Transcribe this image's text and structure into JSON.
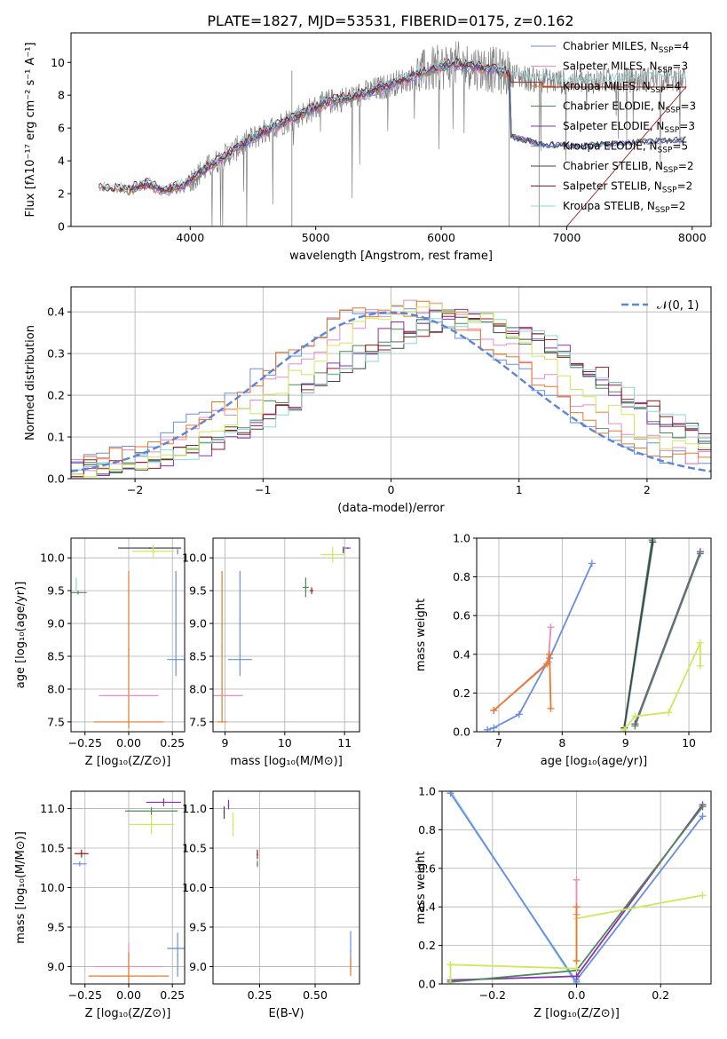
{
  "figure_title": "PLATE=1827, MJD=53531, FIBERID=0175, z=0.162",
  "colors": {
    "chabrier_miles": "#6a8ee0",
    "salpeter_miles": "#e88bbf",
    "kroupa_miles": "#e8782a",
    "chabrier_elodie": "#4d8a55",
    "salpeter_elodie": "#8a30b8",
    "kroupa_elodie": "#5a8ad8",
    "chabrier_stelib": "#444444",
    "salpeter_stelib": "#9a1a1a",
    "kroupa_stelib": "#8fd6d6",
    "data": "#808080",
    "yellowgreen": "#cfe85a",
    "normal_curve": "#5b86d6",
    "grid": "#b0b0b0"
  },
  "chart_data": [
    {
      "id": "spectrum",
      "type": "line",
      "title": "PLATE=1827, MJD=53531, FIBERID=0175, z=0.162",
      "xlabel": "wavelength [Angstrom, rest frame]",
      "ylabel": "Flux [fλ10⁻¹⁷ erg cm⁻² s⁻¹ A⁻¹]",
      "xlim": [
        3050,
        8150
      ],
      "ylim": [
        0,
        11.8
      ],
      "xticks": [
        4000,
        5000,
        6000,
        7000,
        8000
      ],
      "yticks": [
        0,
        2,
        4,
        6,
        8,
        10
      ],
      "grid": false,
      "legend_position": "top-right",
      "legend": [
        {
          "key": "chabrier_miles",
          "label": "Chabrier MILES, N",
          "sub": "SSP",
          "tail": "=4"
        },
        {
          "key": "salpeter_miles",
          "label": "Salpeter MILES, N",
          "sub": "SSP",
          "tail": "=3"
        },
        {
          "key": "kroupa_miles",
          "label": "Kroupa MILES, N",
          "sub": "SSP",
          "tail": "=4"
        },
        {
          "key": "chabrier_elodie",
          "label": "Chabrier ELODIE, N",
          "sub": "SSP",
          "tail": "=3"
        },
        {
          "key": "salpeter_elodie",
          "label": "Salpeter ELODIE, N",
          "sub": "SSP",
          "tail": "=3"
        },
        {
          "key": "kroupa_elodie",
          "label": "Kroupa ELODIE, N",
          "sub": "SSP",
          "tail": "=5"
        },
        {
          "key": "chabrier_stelib",
          "label": "Chabrier STELIB, N",
          "sub": "SSP",
          "tail": "=2"
        },
        {
          "key": "salpeter_stelib",
          "label": "Salpeter STELIB, N",
          "sub": "SSP",
          "tail": "=2"
        },
        {
          "key": "kroupa_stelib",
          "label": "Kroupa STELIB, N",
          "sub": "SSP",
          "tail": "=2"
        }
      ],
      "continuum": [
        [
          3270,
          2.3
        ],
        [
          3500,
          2.2
        ],
        [
          3650,
          2.6
        ],
        [
          3800,
          2.2
        ],
        [
          3950,
          2.5
        ],
        [
          4100,
          3.4
        ],
        [
          4300,
          4.4
        ],
        [
          4500,
          5.4
        ],
        [
          4700,
          6.2
        ],
        [
          4900,
          6.9
        ],
        [
          5100,
          7.6
        ],
        [
          5300,
          7.9
        ],
        [
          5500,
          8.4
        ],
        [
          5700,
          8.9
        ],
        [
          5900,
          9.5
        ],
        [
          6100,
          9.9
        ],
        [
          6300,
          9.7
        ],
        [
          6500,
          9.4
        ],
        [
          6700,
          9.0
        ],
        [
          7000,
          8.8
        ],
        [
          7400,
          8.9
        ],
        [
          7800,
          9.0
        ],
        [
          7950,
          9.0
        ]
      ],
      "model_red_tail": [
        [
          6550,
          5.5
        ],
        [
          6800,
          5.0
        ],
        [
          7100,
          4.9
        ],
        [
          7500,
          5.1
        ],
        [
          7900,
          5.3
        ]
      ]
    },
    {
      "id": "residual-hist",
      "type": "line",
      "xlabel": "(data-model)/error",
      "ylabel": "Normed distribution",
      "xlim": [
        -2.5,
        2.5
      ],
      "ylim": [
        0,
        0.46
      ],
      "xticks": [
        -2,
        -1,
        0,
        1,
        2
      ],
      "yticks": [
        0.0,
        0.1,
        0.2,
        0.3,
        0.4
      ],
      "grid": true,
      "legend_position": "top-right",
      "legend": [
        {
          "key": "normal_curve",
          "label": "𝒩(0, 1)"
        }
      ],
      "bin_width": 0.1,
      "series": [
        {
          "key": "chabrier_miles",
          "shift": 0.0,
          "scale": 1.0
        },
        {
          "key": "salpeter_miles",
          "shift": 0.15,
          "scale": 1.02
        },
        {
          "key": "kroupa_miles",
          "shift": 0.05,
          "scale": 1.0
        },
        {
          "key": "chabrier_elodie",
          "shift": 0.5,
          "scale": 1.08
        },
        {
          "key": "salpeter_elodie",
          "shift": 0.55,
          "scale": 1.05
        },
        {
          "key": "chabrier_stelib",
          "shift": 0.6,
          "scale": 1.1
        },
        {
          "key": "salpeter_stelib",
          "shift": 0.6,
          "scale": 1.1
        },
        {
          "key": "kroupa_stelib",
          "shift": 0.62,
          "scale": 1.1
        },
        {
          "key": "yellowgreen",
          "shift": 0.3,
          "scale": 1.0
        }
      ]
    },
    {
      "id": "age-vs-Z",
      "type": "scatter",
      "xlabel": "Z [log₁₀(Z/Z⊙)]",
      "ylabel": "age  [log₁₀(age/yr)]",
      "xlim": [
        -0.33,
        0.32
      ],
      "ylim": [
        7.35,
        10.3
      ],
      "xticks": [
        -0.25,
        0.0,
        0.25
      ],
      "xticklabels": [
        "−0.25",
        "0.00",
        "0.25"
      ],
      "yticks": [
        7.5,
        8.0,
        8.5,
        9.0,
        9.5,
        10.0
      ],
      "grid": true,
      "points": [
        {
          "key": "kroupa_stelib",
          "x": -0.3,
          "y": 9.6,
          "ex": 0.0,
          "ey": 0.1
        },
        {
          "key": "chabrier_elodie",
          "x": -0.29,
          "y": 9.47,
          "ex": 0.05,
          "ey": 0.03
        },
        {
          "key": "salpeter_elodie",
          "x": 0.12,
          "y": 10.15,
          "ex": 0.18,
          "ey": 0.0
        },
        {
          "key": "chabrier_stelib",
          "x": 0.12,
          "y": 10.15,
          "ex": 0.18,
          "ey": 0.0
        },
        {
          "key": "yellowgreen",
          "x": 0.14,
          "y": 10.1,
          "ex": 0.12,
          "ey": 0.1
        },
        {
          "key": "chabrier_miles",
          "x": 0.28,
          "y": 10.1,
          "ex": 0.0,
          "ey": 0.05
        },
        {
          "key": "chabrier_miles",
          "x": 0.27,
          "y": 8.45,
          "ex": 0.05,
          "ey": 0.0
        },
        {
          "key": "chabrier_miles",
          "x": 0.27,
          "y": 9.0,
          "ex": 0.0,
          "ey": 0.8
        },
        {
          "key": "kroupa_miles",
          "x": 0.0,
          "y": 8.6,
          "ex": 0.0,
          "ey": 1.2
        },
        {
          "key": "salpeter_miles",
          "x": 0.0,
          "y": 7.9,
          "ex": 0.17,
          "ey": 0.0
        },
        {
          "key": "kroupa_miles",
          "x": 0.0,
          "y": 7.5,
          "ex": 0.2,
          "ey": 0.0
        }
      ]
    },
    {
      "id": "age-vs-mass",
      "type": "scatter",
      "xlabel": "mass [log₁₀(M/M⊙)]",
      "xlim": [
        8.8,
        11.25
      ],
      "ylim": [
        7.35,
        10.3
      ],
      "xticks": [
        9,
        10,
        11
      ],
      "yticks": [
        7.5,
        8.0,
        8.5,
        9.0,
        9.5,
        10.0
      ],
      "grid": true,
      "points": [
        {
          "key": "kroupa_miles",
          "x": 8.95,
          "y": 8.65,
          "ex": 0.0,
          "ey": 1.15
        },
        {
          "key": "salpeter_miles",
          "x": 9.05,
          "y": 7.9,
          "ex": 0.25,
          "ey": 0.0
        },
        {
          "key": "kroupa_miles",
          "x": 8.95,
          "y": 7.5,
          "ex": 0.08,
          "ey": 0.0
        },
        {
          "key": "chabrier_miles",
          "x": 9.25,
          "y": 8.45,
          "ex": 0.2,
          "ey": 0.0
        },
        {
          "key": "chabrier_miles",
          "x": 9.25,
          "y": 9.0,
          "ex": 0.0,
          "ey": 0.8
        },
        {
          "key": "chabrier_elodie",
          "x": 10.35,
          "y": 9.55,
          "ex": 0.05,
          "ey": 0.15
        },
        {
          "key": "salpeter_stelib",
          "x": 10.45,
          "y": 9.5,
          "ex": 0.03,
          "ey": 0.05
        },
        {
          "key": "yellowgreen",
          "x": 10.8,
          "y": 10.05,
          "ex": 0.2,
          "ey": 0.12
        },
        {
          "key": "salpeter_elodie",
          "x": 11.05,
          "y": 10.15,
          "ex": 0.05,
          "ey": 0.0
        },
        {
          "key": "chabrier_stelib",
          "x": 10.98,
          "y": 10.12,
          "ex": 0.0,
          "ey": 0.05
        }
      ]
    },
    {
      "id": "weight-vs-age",
      "type": "line",
      "xlabel": "age  [log₁₀(age/yr)]",
      "ylabel": "mass weight",
      "xlim": [
        6.65,
        10.35
      ],
      "ylim": [
        0,
        1
      ],
      "xticks": [
        7,
        8,
        9,
        10
      ],
      "yticks": [
        0.0,
        0.2,
        0.4,
        0.6,
        0.8,
        1.0
      ],
      "grid": true,
      "series": [
        {
          "key": "chabrier_miles",
          "points": [
            [
              6.82,
              0.01
            ],
            [
              6.92,
              0.02
            ],
            [
              7.32,
              0.09
            ],
            [
              7.8,
              0.38
            ],
            [
              8.47,
              0.87
            ]
          ]
        },
        {
          "key": "salpeter_miles",
          "points": [
            [
              6.92,
              0.11
            ],
            [
              7.78,
              0.36
            ],
            [
              7.82,
              0.54
            ]
          ]
        },
        {
          "key": "kroupa_miles",
          "points": [
            [
              6.92,
              0.11
            ],
            [
              7.76,
              0.35
            ],
            [
              7.8,
              0.4
            ],
            [
              7.82,
              0.12
            ]
          ]
        },
        {
          "key": "chabrier_elodie",
          "points": [
            [
              8.98,
              0.02
            ],
            [
              9.42,
              0.99
            ]
          ]
        },
        {
          "key": "kroupa_stelib",
          "points": [
            [
              8.98,
              0.0
            ],
            [
              9.45,
              1.0
            ]
          ]
        },
        {
          "key": "chabrier_stelib",
          "points": [
            [
              8.98,
              0.02
            ],
            [
              9.43,
              0.98
            ]
          ]
        },
        {
          "key": "salpeter_elodie",
          "points": [
            [
              9.15,
              0.04
            ],
            [
              10.18,
              0.93
            ]
          ]
        },
        {
          "key": "chabrier_elodie",
          "points": [
            [
              9.15,
              0.03
            ],
            [
              10.18,
              0.92
            ]
          ]
        },
        {
          "key": "yellowgreen",
          "points": [
            [
              8.98,
              0.01
            ],
            [
              9.15,
              0.08
            ],
            [
              9.68,
              0.1
            ],
            [
              10.18,
              0.46
            ],
            [
              10.18,
              0.34
            ]
          ]
        }
      ]
    },
    {
      "id": "mass-vs-Z",
      "type": "scatter",
      "xlabel": "Z [log₁₀(Z/Z⊙)]",
      "ylabel": "mass [log₁₀(M/M⊙)]",
      "xlim": [
        -0.33,
        0.32
      ],
      "ylim": [
        8.78,
        11.22
      ],
      "xticks": [
        -0.25,
        0.0,
        0.25
      ],
      "xticklabels": [
        "−0.25",
        "0.00",
        "0.25"
      ],
      "yticks": [
        9.0,
        9.5,
        10.0,
        10.5,
        11.0
      ],
      "grid": true,
      "points": [
        {
          "key": "salpeter_stelib",
          "x": -0.27,
          "y": 10.43,
          "ex": 0.04,
          "ey": 0.05
        },
        {
          "key": "chabrier_miles",
          "x": -0.28,
          "y": 10.3,
          "ex": 0.04,
          "ey": 0.03
        },
        {
          "key": "salpeter_elodie",
          "x": 0.2,
          "y": 11.08,
          "ex": 0.1,
          "ey": 0.05
        },
        {
          "key": "chabrier_elodie",
          "x": 0.13,
          "y": 10.97,
          "ex": 0.15,
          "ey": 0.05
        },
        {
          "key": "yellowgreen",
          "x": 0.13,
          "y": 10.8,
          "ex": 0.13,
          "ey": 0.12
        },
        {
          "key": "chabrier_miles",
          "x": 0.27,
          "y": 9.23,
          "ex": 0.05,
          "ey": 0.0
        },
        {
          "key": "chabrier_miles",
          "x": 0.28,
          "y": 9.15,
          "ex": 0.0,
          "ey": 0.28
        },
        {
          "key": "salpeter_miles",
          "x": 0.0,
          "y": 9.0,
          "ex": 0.2,
          "ey": 0.3
        },
        {
          "key": "kroupa_miles",
          "x": 0.0,
          "y": 8.88,
          "ex": 0.23,
          "ey": 0.3
        }
      ]
    },
    {
      "id": "mass-vs-EBV",
      "type": "scatter",
      "xlabel": "E(B-V)",
      "xlim": [
        0.04,
        0.7
      ],
      "ylim": [
        8.78,
        11.22
      ],
      "xticks": [
        0.25,
        0.5
      ],
      "xticklabels": [
        "0.25",
        "0.50"
      ],
      "yticks": [
        9.0,
        9.5,
        10.0,
        10.5,
        11.0
      ],
      "grid": true,
      "points": [
        {
          "key": "chabrier_stelib",
          "x": 0.09,
          "y": 10.95,
          "ex": 0.0,
          "ey": 0.08
        },
        {
          "key": "salpeter_elodie",
          "x": 0.11,
          "y": 11.05,
          "ex": 0.0,
          "ey": 0.06
        },
        {
          "key": "yellowgreen",
          "x": 0.13,
          "y": 10.8,
          "ex": 0.0,
          "ey": 0.15
        },
        {
          "key": "salpeter_stelib",
          "x": 0.24,
          "y": 10.42,
          "ex": 0.0,
          "ey": 0.06
        },
        {
          "key": "chabrier_elodie",
          "x": 0.24,
          "y": 10.3,
          "ex": 0.0,
          "ey": 0.04
        },
        {
          "key": "chabrier_miles",
          "x": 0.66,
          "y": 9.2,
          "ex": 0.0,
          "ey": 0.25
        },
        {
          "key": "kroupa_miles",
          "x": 0.66,
          "y": 9.0,
          "ex": 0.0,
          "ey": 0.12
        }
      ]
    },
    {
      "id": "weight-vs-Z",
      "type": "line",
      "xlabel": "Z [log₁₀(Z/Z⊙)]",
      "ylabel": "mass weight",
      "xlim": [
        -0.32,
        0.32
      ],
      "ylim": [
        0,
        1
      ],
      "xticks": [
        -0.2,
        0.0,
        0.2
      ],
      "xticklabels": [
        "−0.2",
        "0.0",
        "0.2"
      ],
      "yticks": [
        0.0,
        0.2,
        0.4,
        0.6,
        0.8,
        1.0
      ],
      "grid": true,
      "series": [
        {
          "key": "kroupa_stelib",
          "points": [
            [
              -0.3,
              1.0
            ],
            [
              0.0,
              0.0
            ]
          ]
        },
        {
          "key": "chabrier_miles",
          "points": [
            [
              -0.3,
              0.99
            ],
            [
              0.0,
              0.01
            ]
          ]
        },
        {
          "key": "chabrier_miles",
          "points": [
            [
              0.0,
              0.02
            ],
            [
              0.3,
              0.87
            ]
          ]
        },
        {
          "key": "salpeter_elodie",
          "points": [
            [
              -0.3,
              0.02
            ],
            [
              0.0,
              0.04
            ],
            [
              0.3,
              0.93
            ]
          ]
        },
        {
          "key": "chabrier_elodie",
          "points": [
            [
              -0.3,
              0.01
            ],
            [
              0.0,
              0.07
            ],
            [
              0.3,
              0.92
            ]
          ]
        },
        {
          "key": "yellowgreen",
          "points": [
            [
              -0.3,
              0.1
            ],
            [
              0.0,
              0.08
            ],
            [
              0.0,
              0.34
            ],
            [
              0.3,
              0.46
            ]
          ]
        },
        {
          "key": "salpeter_miles",
          "points": [
            [
              0.0,
              0.36
            ],
            [
              0.0,
              0.54
            ]
          ]
        },
        {
          "key": "kroupa_miles",
          "points": [
            [
              0.0,
              0.4
            ],
            [
              0.0,
              0.12
            ]
          ]
        },
        {
          "key": "yellowgreen",
          "points": [
            [
              -0.3,
              0.0
            ],
            [
              -0.3,
              0.1
            ]
          ]
        }
      ]
    }
  ]
}
